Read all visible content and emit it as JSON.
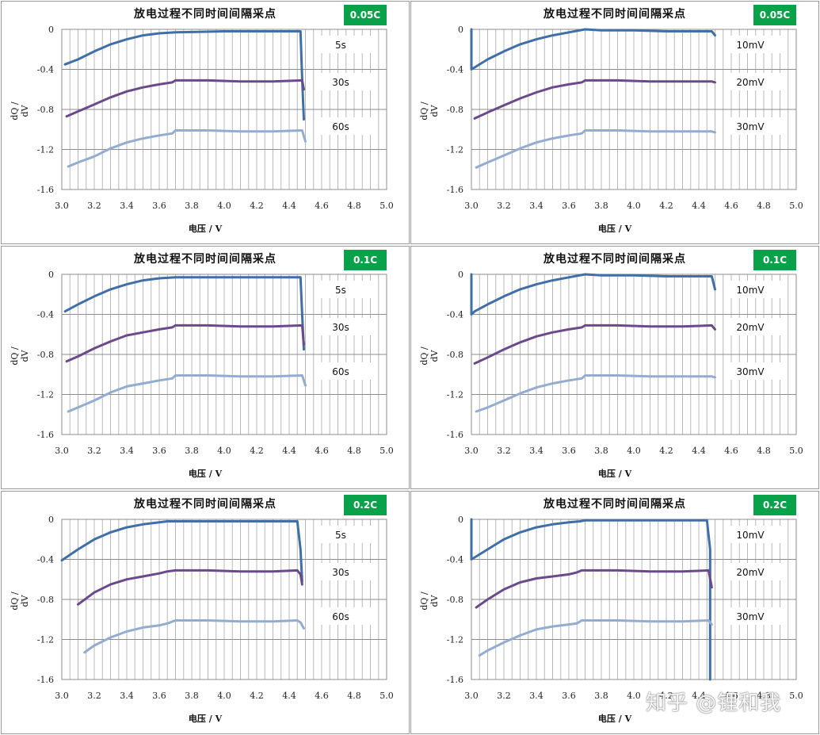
{
  "watermark": "知乎 @锂和我",
  "colors": {
    "series1": "#3f6fa6",
    "series2": "#6a4a8a",
    "series3": "#93acd0",
    "badge": "#0aa14b"
  },
  "chart_data": [
    {
      "type": "line",
      "title": "放电过程不同时间间隔采点",
      "badge": "0.05C",
      "xlabel": "电压 / V",
      "ylabel": "dQ / dV",
      "xlim": [
        3.0,
        5.0
      ],
      "ylim": [
        -1.6,
        0
      ],
      "xticks": [
        "3.0",
        "3.2",
        "3.4",
        "3.6",
        "3.8",
        "4.0",
        "4.2",
        "4.4",
        "4.6",
        "4.8",
        "5.0"
      ],
      "yticks": [
        "0",
        "-0.4",
        "-0.8",
        "-1.2",
        "-1.6"
      ],
      "series": [
        {
          "name": "5s",
          "x": [
            3.02,
            3.1,
            3.2,
            3.3,
            3.4,
            3.5,
            3.6,
            3.7,
            4.0,
            4.3,
            4.47,
            4.48,
            4.49
          ],
          "y": [
            -0.35,
            -0.3,
            -0.22,
            -0.15,
            -0.1,
            -0.06,
            -0.04,
            -0.03,
            -0.02,
            -0.02,
            -0.02,
            -0.5,
            -0.9
          ]
        },
        {
          "name": "30s",
          "x": [
            3.03,
            3.1,
            3.2,
            3.3,
            3.4,
            3.5,
            3.6,
            3.68,
            3.7,
            3.9,
            4.1,
            4.3,
            4.48,
            4.49
          ],
          "y": [
            -0.87,
            -0.82,
            -0.75,
            -0.68,
            -0.62,
            -0.58,
            -0.55,
            -0.53,
            -0.51,
            -0.51,
            -0.52,
            -0.52,
            -0.51,
            -0.6
          ]
        },
        {
          "name": "60s",
          "x": [
            3.04,
            3.1,
            3.2,
            3.3,
            3.4,
            3.5,
            3.6,
            3.68,
            3.7,
            3.9,
            4.1,
            4.3,
            4.48,
            4.5
          ],
          "y": [
            -1.37,
            -1.33,
            -1.27,
            -1.19,
            -1.13,
            -1.09,
            -1.06,
            -1.04,
            -1.01,
            -1.01,
            -1.02,
            -1.02,
            -1.01,
            -1.12
          ]
        }
      ]
    },
    {
      "type": "line",
      "title": "放电过程不同时间间隔采点",
      "badge": "0.05C",
      "xlabel": "电压 / V",
      "ylabel": "dQ / dV",
      "xlim": [
        3.0,
        5.0
      ],
      "ylim": [
        -1.6,
        0
      ],
      "xticks": [
        "3.0",
        "3.2",
        "3.4",
        "3.6",
        "3.8",
        "4.0",
        "4.2",
        "4.4",
        "4.6",
        "4.8",
        "5.0"
      ],
      "yticks": [
        "0",
        "-0.4",
        "-0.8",
        "-1.2",
        "-1.6"
      ],
      "series": [
        {
          "name": "10mV",
          "x": [
            3.0,
            3.0,
            3.02,
            3.1,
            3.2,
            3.3,
            3.4,
            3.5,
            3.6,
            3.7,
            3.8,
            4.0,
            4.2,
            4.4,
            4.48,
            4.5
          ],
          "y": [
            0,
            -0.4,
            -0.38,
            -0.3,
            -0.22,
            -0.15,
            -0.1,
            -0.06,
            -0.03,
            0,
            -0.01,
            -0.01,
            -0.02,
            -0.02,
            -0.02,
            -0.06
          ]
        },
        {
          "name": "20mV",
          "x": [
            3.02,
            3.1,
            3.2,
            3.3,
            3.4,
            3.5,
            3.6,
            3.68,
            3.7,
            3.9,
            4.1,
            4.3,
            4.48,
            4.5
          ],
          "y": [
            -0.89,
            -0.83,
            -0.76,
            -0.69,
            -0.63,
            -0.58,
            -0.55,
            -0.53,
            -0.51,
            -0.51,
            -0.52,
            -0.52,
            -0.52,
            -0.53
          ]
        },
        {
          "name": "30mV",
          "x": [
            3.03,
            3.1,
            3.2,
            3.3,
            3.4,
            3.5,
            3.6,
            3.68,
            3.7,
            3.9,
            4.1,
            4.3,
            4.48,
            4.5
          ],
          "y": [
            -1.38,
            -1.33,
            -1.26,
            -1.19,
            -1.13,
            -1.09,
            -1.06,
            -1.04,
            -1.01,
            -1.01,
            -1.02,
            -1.02,
            -1.02,
            -1.03
          ]
        }
      ]
    },
    {
      "type": "line",
      "title": "放电过程不同时间间隔采点",
      "badge": "0.1C",
      "xlabel": "电压 / V",
      "ylabel": "dQ / dV",
      "xlim": [
        3.0,
        5.0
      ],
      "ylim": [
        -1.6,
        0
      ],
      "xticks": [
        "3.0",
        "3.2",
        "3.4",
        "3.6",
        "3.8",
        "4.0",
        "4.2",
        "4.4",
        "4.6",
        "4.8",
        "5.0"
      ],
      "yticks": [
        "0",
        "-0.4",
        "-0.8",
        "-1.2",
        "-1.6"
      ],
      "series": [
        {
          "name": "5s",
          "x": [
            3.02,
            3.1,
            3.2,
            3.3,
            3.4,
            3.5,
            3.6,
            3.7,
            4.0,
            4.3,
            4.47,
            4.48,
            4.49
          ],
          "y": [
            -0.37,
            -0.3,
            -0.22,
            -0.15,
            -0.1,
            -0.06,
            -0.04,
            -0.03,
            -0.03,
            -0.03,
            -0.03,
            -0.4,
            -0.75
          ]
        },
        {
          "name": "30s",
          "x": [
            3.03,
            3.1,
            3.2,
            3.3,
            3.4,
            3.5,
            3.6,
            3.68,
            3.7,
            3.9,
            4.1,
            4.3,
            4.48,
            4.49
          ],
          "y": [
            -0.87,
            -0.82,
            -0.74,
            -0.67,
            -0.61,
            -0.58,
            -0.55,
            -0.53,
            -0.51,
            -0.51,
            -0.52,
            -0.52,
            -0.51,
            -0.7
          ]
        },
        {
          "name": "60s",
          "x": [
            3.04,
            3.1,
            3.2,
            3.3,
            3.4,
            3.5,
            3.6,
            3.68,
            3.7,
            3.9,
            4.1,
            4.3,
            4.48,
            4.5
          ],
          "y": [
            -1.37,
            -1.33,
            -1.26,
            -1.18,
            -1.12,
            -1.09,
            -1.06,
            -1.04,
            -1.01,
            -1.01,
            -1.02,
            -1.02,
            -1.01,
            -1.11
          ]
        }
      ]
    },
    {
      "type": "line",
      "title": "放电过程不同时间间隔采点",
      "badge": "0.1C",
      "xlabel": "电压 / V",
      "ylabel": "dQ / dV",
      "xlim": [
        3.0,
        5.0
      ],
      "ylim": [
        -1.6,
        0
      ],
      "xticks": [
        "3.0",
        "3.2",
        "3.4",
        "3.6",
        "3.8",
        "4.0",
        "4.2",
        "4.4",
        "4.6",
        "4.8",
        "5.0"
      ],
      "yticks": [
        "0",
        "-0.4",
        "-0.8",
        "-1.2",
        "-1.6"
      ],
      "series": [
        {
          "name": "10mV",
          "x": [
            3.0,
            3.0,
            3.02,
            3.1,
            3.2,
            3.3,
            3.4,
            3.5,
            3.6,
            3.7,
            3.8,
            4.0,
            4.2,
            4.4,
            4.48,
            4.5
          ],
          "y": [
            0,
            -0.4,
            -0.37,
            -0.3,
            -0.22,
            -0.15,
            -0.1,
            -0.06,
            -0.03,
            0,
            -0.01,
            -0.01,
            -0.02,
            -0.02,
            -0.02,
            -0.15
          ]
        },
        {
          "name": "20mV",
          "x": [
            3.02,
            3.1,
            3.2,
            3.3,
            3.4,
            3.5,
            3.6,
            3.68,
            3.7,
            3.9,
            4.1,
            4.3,
            4.48,
            4.5
          ],
          "y": [
            -0.89,
            -0.83,
            -0.75,
            -0.68,
            -0.62,
            -0.58,
            -0.55,
            -0.53,
            -0.51,
            -0.51,
            -0.52,
            -0.52,
            -0.51,
            -0.55
          ]
        },
        {
          "name": "30mV",
          "x": [
            3.03,
            3.1,
            3.2,
            3.3,
            3.4,
            3.5,
            3.6,
            3.68,
            3.7,
            3.9,
            4.1,
            4.3,
            4.48,
            4.5
          ],
          "y": [
            -1.37,
            -1.33,
            -1.26,
            -1.19,
            -1.13,
            -1.09,
            -1.06,
            -1.04,
            -1.01,
            -1.01,
            -1.02,
            -1.02,
            -1.02,
            -1.03
          ]
        }
      ]
    },
    {
      "type": "line",
      "title": "放电过程不同时间间隔采点",
      "badge": "0.2C",
      "xlabel": "电压 / V",
      "ylabel": "dQ / dV",
      "xlim": [
        3.0,
        5.0
      ],
      "ylim": [
        -1.6,
        0
      ],
      "xticks": [
        "3.0",
        "3.2",
        "3.4",
        "3.6",
        "3.8",
        "4.0",
        "4.2",
        "4.4",
        "4.6",
        "4.8",
        "5.0"
      ],
      "yticks": [
        "0",
        "-0.4",
        "-0.8",
        "-1.2",
        "-1.6"
      ],
      "series": [
        {
          "name": "5s",
          "x": [
            3.0,
            3.1,
            3.2,
            3.3,
            3.4,
            3.5,
            3.6,
            3.65,
            3.8,
            4.0,
            4.2,
            4.4,
            4.45,
            4.47,
            4.48
          ],
          "y": [
            -0.41,
            -0.3,
            -0.2,
            -0.13,
            -0.08,
            -0.05,
            -0.03,
            -0.02,
            -0.02,
            -0.02,
            -0.02,
            -0.02,
            -0.02,
            -0.3,
            -0.62
          ]
        },
        {
          "name": "30s",
          "x": [
            3.1,
            3.2,
            3.3,
            3.4,
            3.5,
            3.6,
            3.65,
            3.7,
            3.9,
            4.1,
            4.3,
            4.45,
            4.47,
            4.48
          ],
          "y": [
            -0.85,
            -0.73,
            -0.65,
            -0.6,
            -0.57,
            -0.54,
            -0.52,
            -0.51,
            -0.51,
            -0.52,
            -0.52,
            -0.51,
            -0.55,
            -0.65
          ]
        },
        {
          "name": "60s",
          "x": [
            3.14,
            3.2,
            3.3,
            3.4,
            3.5,
            3.6,
            3.65,
            3.7,
            3.9,
            4.1,
            4.3,
            4.45,
            4.47,
            4.49
          ],
          "y": [
            -1.33,
            -1.26,
            -1.18,
            -1.12,
            -1.08,
            -1.06,
            -1.04,
            -1.01,
            -1.01,
            -1.02,
            -1.02,
            -1.01,
            -1.03,
            -1.09
          ]
        }
      ]
    },
    {
      "type": "line",
      "title": "放电过程不同时间间隔采点",
      "badge": "0.2C",
      "xlabel": "电压 / V",
      "ylabel": "dQ / dV",
      "xlim": [
        3.0,
        5.0
      ],
      "ylim": [
        -1.6,
        0
      ],
      "xticks": [
        "3.0",
        "3.2",
        "3.4",
        "3.6",
        "3.8",
        "4.0",
        "4.2",
        "4.4",
        "4.6",
        "4.8",
        "5.0"
      ],
      "yticks": [
        "0",
        "-0.4",
        "-0.8",
        "-1.2",
        "-1.6"
      ],
      "series": [
        {
          "name": "10mV",
          "x": [
            3.0,
            3.0,
            3.02,
            3.1,
            3.2,
            3.3,
            3.4,
            3.5,
            3.6,
            3.67,
            3.7,
            3.9,
            4.1,
            4.3,
            4.45,
            4.47,
            4.47
          ],
          "y": [
            0,
            -0.4,
            -0.38,
            -0.3,
            -0.2,
            -0.13,
            -0.08,
            -0.05,
            -0.03,
            -0.02,
            -0.01,
            -0.01,
            -0.01,
            -0.01,
            -0.01,
            -0.3,
            -1.6
          ]
        },
        {
          "name": "20mV",
          "x": [
            3.03,
            3.1,
            3.2,
            3.3,
            3.4,
            3.5,
            3.6,
            3.65,
            3.68,
            3.9,
            4.1,
            4.3,
            4.46,
            4.48
          ],
          "y": [
            -0.88,
            -0.8,
            -0.7,
            -0.63,
            -0.59,
            -0.57,
            -0.55,
            -0.53,
            -0.51,
            -0.51,
            -0.52,
            -0.52,
            -0.51,
            -0.68
          ]
        },
        {
          "name": "30mV",
          "x": [
            3.05,
            3.1,
            3.2,
            3.3,
            3.4,
            3.5,
            3.6,
            3.65,
            3.68,
            3.9,
            4.1,
            4.3,
            4.46,
            4.48
          ],
          "y": [
            -1.36,
            -1.31,
            -1.23,
            -1.16,
            -1.1,
            -1.07,
            -1.05,
            -1.04,
            -1.01,
            -1.01,
            -1.02,
            -1.02,
            -1.01,
            -1.05
          ]
        }
      ]
    }
  ]
}
